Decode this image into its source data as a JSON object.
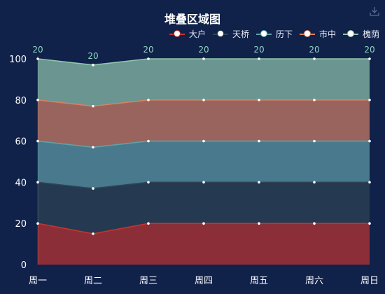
{
  "chart_data": {
    "type": "area",
    "stacked": true,
    "title": "堆叠区域图",
    "categories": [
      "周一",
      "周二",
      "周三",
      "周四",
      "周五",
      "周六",
      "周日"
    ],
    "ylim": [
      0,
      100
    ],
    "yticks": [
      0,
      20,
      40,
      60,
      80,
      100
    ],
    "grid": false,
    "legend_position": "top-right",
    "series": [
      {
        "name": "大户",
        "values": [
          20,
          15,
          20,
          20,
          20,
          20,
          20
        ],
        "color": "#c23531"
      },
      {
        "name": "天桥",
        "values": [
          20,
          22,
          20,
          20,
          20,
          20,
          20
        ],
        "color": "#2f4554"
      },
      {
        "name": "历下",
        "values": [
          20,
          20,
          20,
          20,
          20,
          20,
          20
        ],
        "color": "#61a0a8"
      },
      {
        "name": "市中",
        "values": [
          20,
          20,
          20,
          20,
          20,
          20,
          20
        ],
        "color": "#d48265"
      },
      {
        "name": "槐荫",
        "values": [
          20,
          20,
          20,
          20,
          20,
          20,
          20
        ],
        "color": "#91c7ae"
      }
    ],
    "top_labels": [
      "20",
      "20",
      "20",
      "20",
      "20",
      "20",
      "20"
    ]
  },
  "colors": {
    "background": "#10214a",
    "axis_text": "#ffffff",
    "label_text": "#8fd6c4"
  },
  "toolbar": {
    "download_icon": "download-icon"
  }
}
